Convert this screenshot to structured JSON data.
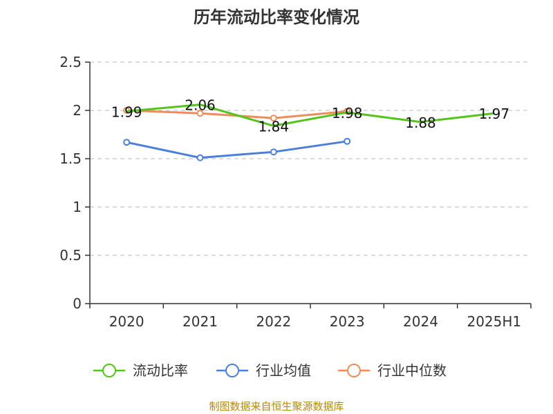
{
  "chart_data": {
    "type": "line",
    "title": "历年流动比率变化情况",
    "categories": [
      "2020",
      "2021",
      "2022",
      "2023",
      "2024",
      "2025H1"
    ],
    "ylim": [
      0,
      2.5
    ],
    "yticks": [
      "0",
      "0.5",
      "1",
      "1.5",
      "2",
      "2.5"
    ],
    "grid": true,
    "legend_position": "bottom",
    "series": [
      {
        "name": "流动比率",
        "color": "#52c41a",
        "values": [
          1.99,
          2.06,
          1.84,
          1.98,
          1.88,
          1.97
        ],
        "labels": [
          "1.99",
          "2.06",
          "1.84",
          "1.98",
          "1.88",
          "1.97"
        ],
        "markers": [
          false,
          false,
          false,
          false,
          false,
          false
        ]
      },
      {
        "name": "行业均值",
        "color": "#4a7fdb",
        "values": [
          1.67,
          1.51,
          1.57,
          1.68,
          null,
          null
        ],
        "markers": [
          true,
          true,
          true,
          true,
          false,
          false
        ]
      },
      {
        "name": "行业中位数",
        "color": "#f08c5a",
        "values": [
          2.0,
          1.97,
          1.92,
          1.99,
          null,
          null
        ],
        "markers": [
          true,
          true,
          true,
          true,
          false,
          false
        ]
      }
    ]
  },
  "source": "制图数据来自恒生聚源数据库"
}
